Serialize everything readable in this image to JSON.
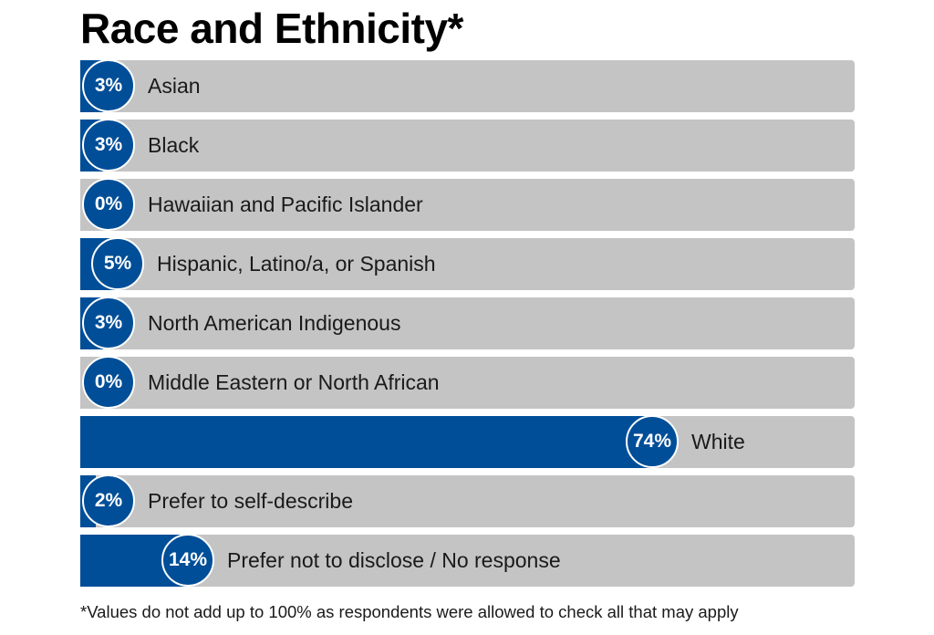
{
  "colors": {
    "bar": "#014e98",
    "track": "#c4c4c4",
    "text": "#1a1a1a"
  },
  "chart_data": {
    "type": "bar",
    "orientation": "horizontal",
    "title": "Race and Ethnicity*",
    "unit": "%",
    "categories": [
      "Asian",
      "Black",
      "Hawaiian and Pacific Islander",
      "Hispanic, Latino/a, or Spanish",
      "North American Indigenous",
      "Middle Eastern or North African",
      "White",
      "Prefer to self-describe",
      "Prefer not to disclose / No response"
    ],
    "values": [
      3,
      3,
      0,
      5,
      3,
      0,
      74,
      2,
      14
    ],
    "value_labels": [
      "3%",
      "3%",
      "0%",
      "5%",
      "3%",
      "0%",
      "74%",
      "2%",
      "14%"
    ],
    "xlim": [
      0,
      100
    ],
    "footnote": "*Values do not add up to 100% as respondents were allowed to check all that may apply"
  }
}
